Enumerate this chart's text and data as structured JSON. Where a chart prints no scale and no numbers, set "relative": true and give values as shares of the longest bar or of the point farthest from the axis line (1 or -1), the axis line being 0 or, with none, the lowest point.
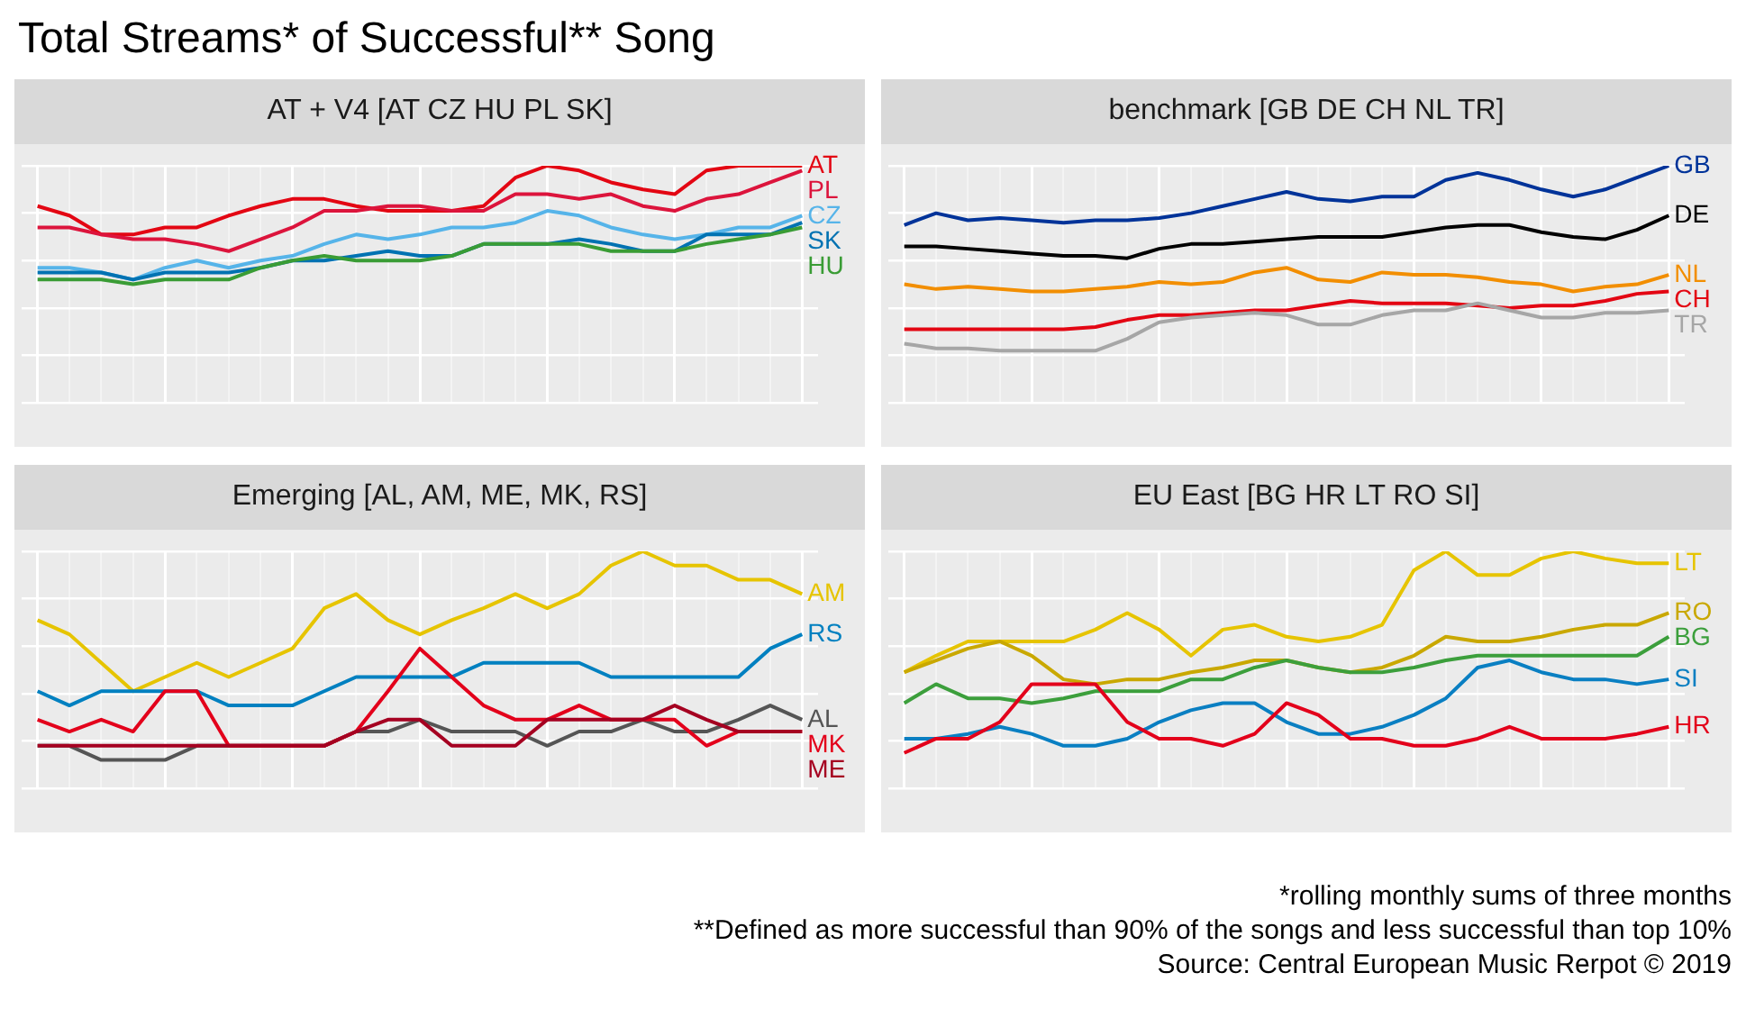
{
  "chart_data": [
    {
      "type": "other",
      "title": "Total Streams* of Successful** Song",
      "annotations": [
        "*rolling monthly sums of three months",
        "**Defined as more successful than 90% of the songs and less successful than top 10%",
        "Source: Central European Music Rerpot © 2019"
      ]
    },
    {
      "type": "line",
      "title": "AT + V4 [AT CZ HU PL SK]",
      "relative": true,
      "grid": true,
      "marker": "none",
      "line_style": "solid",
      "categories": [
        null,
        null,
        null,
        null,
        null,
        null,
        null,
        null,
        null,
        null,
        null,
        null,
        null,
        null,
        null,
        null,
        null,
        null,
        null,
        null,
        null,
        null,
        null,
        null,
        null
      ],
      "series": [
        {
          "name": "AT",
          "color": "#e30613",
          "values": [
            0.83,
            0.79,
            0.71,
            0.71,
            0.74,
            0.74,
            0.79,
            0.83,
            0.86,
            0.86,
            0.83,
            0.81,
            0.81,
            0.81,
            0.83,
            0.95,
            1,
            0.98,
            0.93,
            0.9,
            0.88,
            0.98,
            1,
            1,
            1
          ]
        },
        {
          "name": "PL",
          "color": "#dc143c",
          "values": [
            0.74,
            0.74,
            0.71,
            0.69,
            0.69,
            0.67,
            0.64,
            0.69,
            0.74,
            0.81,
            0.81,
            0.83,
            0.83,
            0.81,
            0.81,
            0.88,
            0.88,
            0.86,
            0.88,
            0.83,
            0.81,
            0.86,
            0.88,
            0.93,
            0.98
          ]
        },
        {
          "name": "CZ",
          "color": "#56b4e9",
          "values": [
            0.57,
            0.57,
            0.55,
            0.52,
            0.57,
            0.6,
            0.57,
            0.6,
            0.62,
            0.67,
            0.71,
            0.69,
            0.71,
            0.74,
            0.74,
            0.76,
            0.81,
            0.79,
            0.74,
            0.71,
            0.69,
            0.71,
            0.74,
            0.74,
            0.79
          ]
        },
        {
          "name": "SK",
          "color": "#0072b2",
          "values": [
            0.55,
            0.55,
            0.55,
            0.52,
            0.55,
            0.55,
            0.55,
            0.57,
            0.6,
            0.6,
            0.62,
            0.64,
            0.62,
            0.62,
            0.67,
            0.67,
            0.67,
            0.69,
            0.67,
            0.64,
            0.64,
            0.71,
            0.71,
            0.71,
            0.76
          ]
        },
        {
          "name": "HU",
          "color": "#3a9c35",
          "values": [
            0.52,
            0.52,
            0.52,
            0.5,
            0.52,
            0.52,
            0.52,
            0.57,
            0.6,
            0.62,
            0.6,
            0.6,
            0.6,
            0.62,
            0.67,
            0.67,
            0.67,
            0.67,
            0.64,
            0.64,
            0.64,
            0.67,
            0.69,
            0.71,
            0.74
          ]
        }
      ]
    },
    {
      "type": "line",
      "title": "benchmark [GB DE CH NL TR]",
      "relative": true,
      "grid": true,
      "marker": "none",
      "line_style": "solid",
      "categories": [
        null,
        null,
        null,
        null,
        null,
        null,
        null,
        null,
        null,
        null,
        null,
        null,
        null,
        null,
        null,
        null,
        null,
        null,
        null,
        null,
        null,
        null,
        null,
        null,
        null
      ],
      "series": [
        {
          "name": "GB",
          "color": "#003399",
          "values": [
            0.75,
            0.8,
            0.77,
            0.78,
            0.77,
            0.76,
            0.77,
            0.77,
            0.78,
            0.8,
            0.83,
            0.86,
            0.89,
            0.86,
            0.85,
            0.87,
            0.87,
            0.94,
            0.97,
            0.94,
            0.9,
            0.87,
            0.9,
            0.95,
            1
          ]
        },
        {
          "name": "DE",
          "color": "#000000",
          "values": [
            0.66,
            0.66,
            0.65,
            0.64,
            0.63,
            0.62,
            0.62,
            0.61,
            0.65,
            0.67,
            0.67,
            0.68,
            0.69,
            0.7,
            0.7,
            0.7,
            0.72,
            0.74,
            0.75,
            0.75,
            0.72,
            0.7,
            0.69,
            0.73,
            0.79
          ]
        },
        {
          "name": "NL",
          "color": "#f28e00",
          "values": [
            0.5,
            0.48,
            0.49,
            0.48,
            0.47,
            0.47,
            0.48,
            0.49,
            0.51,
            0.5,
            0.51,
            0.55,
            0.57,
            0.52,
            0.51,
            0.55,
            0.54,
            0.54,
            0.53,
            0.51,
            0.5,
            0.47,
            0.49,
            0.5,
            0.54
          ]
        },
        {
          "name": "CH",
          "color": "#e30613",
          "values": [
            0.31,
            0.31,
            0.31,
            0.31,
            0.31,
            0.31,
            0.32,
            0.35,
            0.37,
            0.37,
            0.38,
            0.39,
            0.39,
            0.41,
            0.43,
            0.42,
            0.42,
            0.42,
            0.41,
            0.4,
            0.41,
            0.41,
            0.43,
            0.46,
            0.47
          ]
        },
        {
          "name": "TR",
          "color": "#a6a6a6",
          "values": [
            0.25,
            0.23,
            0.23,
            0.22,
            0.22,
            0.22,
            0.22,
            0.27,
            0.34,
            0.36,
            0.37,
            0.38,
            0.37,
            0.33,
            0.33,
            0.37,
            0.39,
            0.39,
            0.42,
            0.39,
            0.36,
            0.36,
            0.38,
            0.38,
            0.39
          ]
        }
      ]
    },
    {
      "type": "line",
      "title": "Emerging [AL, AM, ME, MK, RS]",
      "relative": true,
      "grid": true,
      "marker": "none",
      "line_style": "solid",
      "categories": [
        null,
        null,
        null,
        null,
        null,
        null,
        null,
        null,
        null,
        null,
        null,
        null,
        null,
        null,
        null,
        null,
        null,
        null,
        null,
        null,
        null,
        null,
        null,
        null,
        null
      ],
      "series": [
        {
          "name": "AM",
          "color": "#e6c400",
          "values": [
            0.71,
            0.65,
            0.53,
            0.41,
            0.47,
            0.53,
            0.47,
            0.53,
            0.59,
            0.76,
            0.82,
            0.71,
            0.65,
            0.71,
            0.76,
            0.82,
            0.76,
            0.82,
            0.94,
            1,
            0.94,
            0.94,
            0.88,
            0.88,
            0.82
          ]
        },
        {
          "name": "RS",
          "color": "#0080c0",
          "values": [
            0.41,
            0.35,
            0.41,
            0.41,
            0.41,
            0.41,
            0.35,
            0.35,
            0.35,
            0.41,
            0.47,
            0.47,
            0.47,
            0.47,
            0.53,
            0.53,
            0.53,
            0.53,
            0.47,
            0.47,
            0.47,
            0.47,
            0.47,
            0.59,
            0.65
          ]
        },
        {
          "name": "AL",
          "color": "#555555",
          "values": [
            0.18,
            0.18,
            0.12,
            0.12,
            0.12,
            0.18,
            0.18,
            0.18,
            0.18,
            0.18,
            0.24,
            0.24,
            0.29,
            0.24,
            0.24,
            0.24,
            0.18,
            0.24,
            0.24,
            0.29,
            0.24,
            0.24,
            0.29,
            0.35,
            0.29
          ]
        },
        {
          "name": "MK",
          "color": "#e3001b",
          "values": [
            0.29,
            0.24,
            0.29,
            0.24,
            0.41,
            0.41,
            0.18,
            0.18,
            0.18,
            0.18,
            0.24,
            0.41,
            0.59,
            0.47,
            0.35,
            0.29,
            0.29,
            0.35,
            0.29,
            0.29,
            0.29,
            0.18,
            0.24,
            0.24,
            0.24
          ]
        },
        {
          "name": "ME",
          "color": "#a50021",
          "values": [
            0.18,
            0.18,
            0.18,
            0.18,
            0.18,
            0.18,
            0.18,
            0.18,
            0.18,
            0.18,
            0.24,
            0.29,
            0.29,
            0.18,
            0.18,
            0.18,
            0.29,
            0.29,
            0.29,
            0.29,
            0.35,
            0.29,
            0.24,
            0.24,
            0.24
          ]
        }
      ]
    },
    {
      "type": "line",
      "title": "EU East [BG HR LT RO SI]",
      "relative": true,
      "grid": true,
      "marker": "none",
      "line_style": "solid",
      "categories": [
        null,
        null,
        null,
        null,
        null,
        null,
        null,
        null,
        null,
        null,
        null,
        null,
        null,
        null,
        null,
        null,
        null,
        null,
        null,
        null,
        null,
        null,
        null,
        null,
        null
      ],
      "series": [
        {
          "name": "LT",
          "color": "#e6c400",
          "values": [
            0.49,
            0.56,
            0.62,
            0.62,
            0.62,
            0.62,
            0.67,
            0.74,
            0.67,
            0.56,
            0.67,
            0.69,
            0.64,
            0.62,
            0.64,
            0.69,
            0.92,
            1,
            0.9,
            0.9,
            0.97,
            1,
            0.97,
            0.95,
            0.95
          ]
        },
        {
          "name": "RO",
          "color": "#c9a800",
          "values": [
            0.49,
            0.54,
            0.59,
            0.62,
            0.56,
            0.46,
            0.44,
            0.46,
            0.46,
            0.49,
            0.51,
            0.54,
            0.54,
            0.51,
            0.49,
            0.51,
            0.56,
            0.64,
            0.62,
            0.62,
            0.64,
            0.67,
            0.69,
            0.69,
            0.74
          ]
        },
        {
          "name": "BG",
          "color": "#3c9f3c",
          "values": [
            0.36,
            0.44,
            0.38,
            0.38,
            0.36,
            0.38,
            0.41,
            0.41,
            0.41,
            0.46,
            0.46,
            0.51,
            0.54,
            0.51,
            0.49,
            0.49,
            0.51,
            0.54,
            0.56,
            0.56,
            0.56,
            0.56,
            0.56,
            0.56,
            0.64
          ]
        },
        {
          "name": "SI",
          "color": "#0a7fc2",
          "values": [
            0.21,
            0.21,
            0.23,
            0.26,
            0.23,
            0.18,
            0.18,
            0.21,
            0.28,
            0.33,
            0.36,
            0.36,
            0.28,
            0.23,
            0.23,
            0.26,
            0.31,
            0.38,
            0.51,
            0.54,
            0.49,
            0.46,
            0.46,
            0.44,
            0.46
          ]
        },
        {
          "name": "HR",
          "color": "#e3001b",
          "values": [
            0.15,
            0.21,
            0.21,
            0.28,
            0.44,
            0.44,
            0.44,
            0.28,
            0.21,
            0.21,
            0.18,
            0.23,
            0.36,
            0.31,
            0.21,
            0.21,
            0.18,
            0.18,
            0.21,
            0.26,
            0.21,
            0.21,
            0.21,
            0.23,
            0.26
          ]
        }
      ]
    }
  ]
}
